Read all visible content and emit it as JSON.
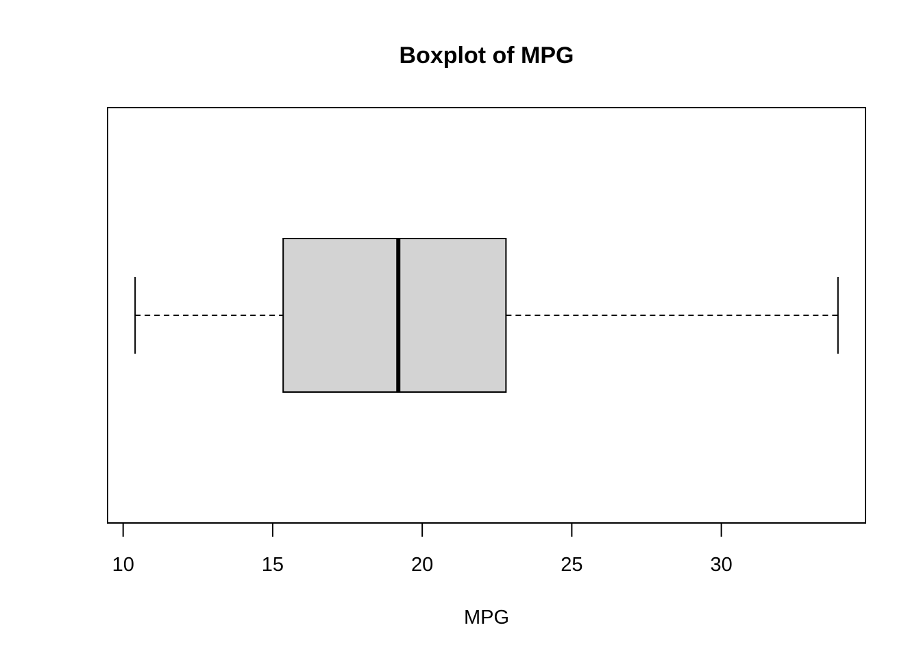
{
  "chart_data": {
    "type": "boxplot",
    "orientation": "horizontal",
    "title": "Boxplot of MPG",
    "xlabel": "MPG",
    "ylabel": "",
    "xlim": [
      9.48,
      34.82
    ],
    "xticks": [
      10,
      15,
      20,
      25,
      30
    ],
    "xtick_labels": [
      "10",
      "15",
      "20",
      "25",
      "30"
    ],
    "grid": false,
    "legend": "none",
    "box": {
      "min": 10.4,
      "q1": 15.35,
      "median": 19.2,
      "q3": 22.8,
      "max": 33.9
    },
    "outliers": [],
    "colors": {
      "box_fill": "#d3d3d3",
      "line": "#000000",
      "background": "#ffffff"
    }
  }
}
